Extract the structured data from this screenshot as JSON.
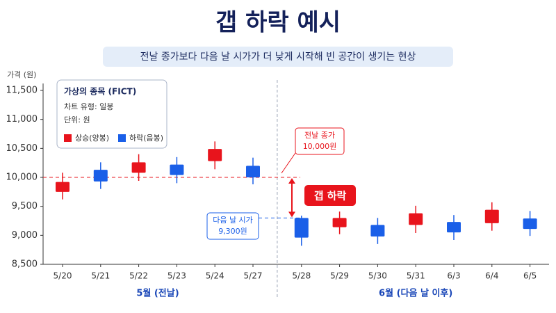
{
  "chart_data": {
    "type": "candlestick",
    "title": "갭 하락 예시",
    "subtitle": "전날 종가보다 다음 날 시가가 더 낮게 시작해 빈 공간이 생기는 현상",
    "y_label": "가격 (원)",
    "categories": [
      "5/20",
      "5/21",
      "5/22",
      "5/23",
      "5/24",
      "5/27",
      "5/28",
      "5/29",
      "5/30",
      "5/31",
      "6/3",
      "6/4",
      "6/5"
    ],
    "open": [
      9750,
      10130,
      10080,
      10220,
      10280,
      10200,
      9300,
      9140,
      9180,
      9180,
      9230,
      9210,
      9290
    ],
    "high": [
      10080,
      10260,
      10400,
      10350,
      10620,
      10340,
      9340,
      9410,
      9300,
      9510,
      9350,
      9570,
      9420
    ],
    "low": [
      9620,
      9800,
      9940,
      9900,
      10140,
      9880,
      8820,
      9020,
      8850,
      9040,
      8920,
      9080,
      8990
    ],
    "close": [
      9920,
      9930,
      10260,
      10040,
      10490,
      10000,
      8960,
      9300,
      8980,
      9380,
      9050,
      9440,
      9110
    ],
    "legend_title": "가상의 종목 (FICT)",
    "legend_notes": [
      "차트 유형: 일봉",
      "단위: 원"
    ],
    "legend": [
      {
        "name": "상승(양봉)",
        "color": "#e8141c"
      },
      {
        "name": "하락(음봉)",
        "color": "#1a5fe8"
      }
    ],
    "groups": [
      "5월 (전날)",
      "6월 (다음 날 이후)"
    ],
    "annotations": [
      {
        "text": "전날 종가",
        "value": 10000,
        "value_label": "10,000원",
        "color": "#e8141c"
      },
      {
        "text": "다음 날 시가",
        "value": 9300,
        "value_label": "9,300원",
        "color": "#1a5fe8"
      }
    ],
    "gap_label": "갭 하락",
    "ylim": [
      8500,
      11500
    ],
    "yticks": [
      {
        "value": 8500,
        "label": "8,500"
      },
      {
        "value": 9000,
        "label": "9,000"
      },
      {
        "value": 9500,
        "label": "9,500"
      },
      {
        "value": 10000,
        "label": "10,000"
      },
      {
        "value": 10500,
        "label": "10,500"
      },
      {
        "value": 11000,
        "label": "11,000"
      },
      {
        "value": 11500,
        "label": "11,500"
      }
    ],
    "grid": false
  }
}
